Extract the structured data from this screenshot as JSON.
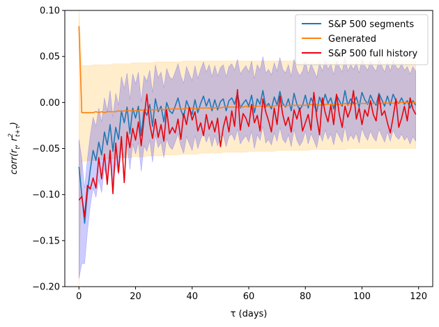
{
  "chart_data": {
    "type": "line",
    "title": "",
    "xlabel": "τ (days)",
    "ylabel_main": "corr(r",
    "ylabel_sub1": "t",
    "ylabel_mid": ", r",
    "ylabel_sup": "2",
    "ylabel_sub2": "t+τ",
    "ylabel_end": ")",
    "xlim": [
      -5,
      125
    ],
    "ylim": [
      -0.2,
      0.1
    ],
    "xticks": [
      0,
      20,
      40,
      60,
      80,
      100,
      120
    ],
    "yticks": [
      -0.2,
      -0.15,
      -0.1,
      -0.05,
      0.0,
      0.05,
      0.1
    ],
    "ytick_labels": [
      "−0.20",
      "−0.15",
      "−0.10",
      "−0.05",
      "0.00",
      "0.05",
      "0.10"
    ],
    "grid": false,
    "legend_position": "top-right",
    "legend": [
      {
        "label": "S&P 500 segments",
        "color": "#1f77b4"
      },
      {
        "label": "Generated",
        "color": "#ff7f0e"
      },
      {
        "label": "S&P 500 full history",
        "color": "#e8000b"
      }
    ],
    "x": [
      0,
      1,
      2,
      3,
      4,
      5,
      6,
      7,
      8,
      9,
      10,
      11,
      12,
      13,
      14,
      15,
      16,
      17,
      18,
      19,
      20,
      21,
      22,
      23,
      24,
      25,
      26,
      27,
      28,
      29,
      30,
      31,
      32,
      33,
      34,
      35,
      36,
      37,
      38,
      39,
      40,
      41,
      42,
      43,
      44,
      45,
      46,
      47,
      48,
      49,
      50,
      51,
      52,
      53,
      54,
      55,
      56,
      57,
      58,
      59,
      60,
      61,
      62,
      63,
      64,
      65,
      66,
      67,
      68,
      69,
      70,
      71,
      72,
      73,
      74,
      75,
      76,
      77,
      78,
      79,
      80,
      81,
      82,
      83,
      84,
      85,
      86,
      87,
      88,
      89,
      90,
      91,
      92,
      93,
      94,
      95,
      96,
      97,
      98,
      99,
      100,
      101,
      102,
      103,
      104,
      105,
      106,
      107,
      108,
      109,
      110,
      111,
      112,
      113,
      114,
      115,
      116,
      117,
      118,
      119
    ],
    "series": [
      {
        "name": "S&P 500 segments",
        "color": "#1f77b4",
        "band_color": "#0000ff",
        "band_opacity": 0.2,
        "values": [
          -0.07,
          -0.1,
          -0.131,
          -0.098,
          -0.073,
          -0.052,
          -0.063,
          -0.043,
          -0.057,
          -0.032,
          -0.046,
          -0.024,
          -0.053,
          -0.027,
          -0.04,
          -0.009,
          -0.022,
          -0.005,
          -0.034,
          -0.006,
          -0.017,
          -0.004,
          -0.036,
          -0.008,
          -0.014,
          -0.002,
          -0.026,
          0.004,
          -0.01,
          -0.004,
          -0.021,
          0.0,
          -0.009,
          -0.012,
          -0.004,
          0.005,
          -0.008,
          -0.016,
          0.002,
          -0.006,
          -0.013,
          0.003,
          -0.011,
          -0.001,
          0.007,
          -0.004,
          0.004,
          -0.009,
          0.003,
          -0.008,
          0.001,
          0.004,
          -0.009,
          0.002,
          0.005,
          -0.002,
          0.01,
          -0.006,
          -0.001,
          0.003,
          -0.004,
          0.008,
          -0.011,
          0.004,
          -0.002,
          0.013,
          -0.005,
          -0.001,
          -0.007,
          0.006,
          -0.003,
          0.012,
          -0.001,
          -0.005,
          0.004,
          -0.009,
          0.01,
          -0.002,
          -0.008,
          -0.003,
          0.008,
          -0.006,
          0.005,
          -0.002,
          -0.01,
          0.006,
          -0.003,
          0.009,
          -0.001,
          0.005,
          -0.007,
          0.008,
          0.002,
          -0.004,
          0.013,
          -0.003,
          0.004,
          -0.001,
          0.006,
          -0.005,
          0.011,
          0.003,
          -0.002,
          0.008,
          0.001,
          -0.003,
          0.01,
          0.003,
          -0.004,
          0.007,
          -0.003,
          0.009,
          0.002,
          -0.001,
          0.005,
          -0.002,
          0.002,
          -0.006,
          0.002,
          -0.003
        ],
        "band_upper": [
          -0.04,
          -0.061,
          -0.093,
          -0.061,
          -0.036,
          -0.016,
          -0.026,
          -0.006,
          -0.021,
          0.005,
          -0.009,
          0.013,
          -0.016,
          0.01,
          -0.003,
          0.028,
          0.015,
          0.032,
          0.003,
          0.031,
          0.02,
          0.033,
          0.001,
          0.029,
          0.023,
          0.035,
          0.011,
          0.041,
          0.027,
          0.033,
          0.016,
          0.037,
          0.028,
          0.025,
          0.033,
          0.042,
          0.029,
          0.021,
          0.039,
          0.031,
          0.024,
          0.04,
          0.026,
          0.036,
          0.044,
          0.033,
          0.041,
          0.028,
          0.04,
          0.029,
          0.038,
          0.041,
          0.028,
          0.039,
          0.042,
          0.035,
          0.047,
          0.031,
          0.036,
          0.04,
          0.033,
          0.045,
          0.026,
          0.041,
          0.035,
          0.05,
          0.032,
          0.036,
          0.03,
          0.043,
          0.034,
          0.049,
          0.036,
          0.032,
          0.041,
          0.028,
          0.047,
          0.035,
          0.029,
          0.034,
          0.045,
          0.031,
          0.042,
          0.035,
          0.027,
          0.043,
          0.034,
          0.046,
          0.036,
          0.042,
          0.03,
          0.045,
          0.039,
          0.033,
          0.05,
          0.034,
          0.041,
          0.036,
          0.043,
          0.032,
          0.048,
          0.04,
          0.035,
          0.045,
          0.038,
          0.034,
          0.047,
          0.04,
          0.033,
          0.044,
          0.034,
          0.046,
          0.039,
          0.036,
          0.042,
          0.035,
          0.039,
          0.031,
          0.039,
          0.034
        ],
        "band_lower": [
          -0.191,
          -0.175,
          -0.175,
          -0.14,
          -0.112,
          -0.093,
          -0.103,
          -0.084,
          -0.098,
          -0.071,
          -0.085,
          -0.063,
          -0.092,
          -0.066,
          -0.079,
          -0.049,
          -0.061,
          -0.044,
          -0.073,
          -0.045,
          -0.056,
          -0.043,
          -0.075,
          -0.047,
          -0.053,
          -0.041,
          -0.065,
          -0.035,
          -0.049,
          -0.043,
          -0.06,
          -0.039,
          -0.048,
          -0.051,
          -0.043,
          -0.034,
          -0.047,
          -0.055,
          -0.037,
          -0.045,
          -0.052,
          -0.036,
          -0.05,
          -0.04,
          -0.032,
          -0.043,
          -0.035,
          -0.048,
          -0.036,
          -0.047,
          -0.038,
          -0.035,
          -0.048,
          -0.037,
          -0.034,
          -0.041,
          -0.029,
          -0.045,
          -0.04,
          -0.036,
          -0.043,
          -0.031,
          -0.05,
          -0.035,
          -0.041,
          -0.026,
          -0.044,
          -0.04,
          -0.046,
          -0.033,
          -0.042,
          -0.027,
          -0.04,
          -0.044,
          -0.035,
          -0.048,
          -0.029,
          -0.041,
          -0.047,
          -0.042,
          -0.031,
          -0.045,
          -0.034,
          -0.041,
          -0.049,
          -0.033,
          -0.042,
          -0.03,
          -0.04,
          -0.034,
          -0.046,
          -0.031,
          -0.037,
          -0.043,
          -0.026,
          -0.042,
          -0.035,
          -0.04,
          -0.033,
          -0.044,
          -0.028,
          -0.036,
          -0.041,
          -0.031,
          -0.038,
          -0.042,
          -0.029,
          -0.036,
          -0.043,
          -0.032,
          -0.042,
          -0.03,
          -0.037,
          -0.04,
          -0.034,
          -0.041,
          -0.037,
          -0.045,
          -0.037,
          -0.042
        ]
      },
      {
        "name": "Generated",
        "color": "#ff7f0e",
        "band_color": "#ffa500",
        "band_opacity": 0.2,
        "values": [
          0.083,
          -0.011,
          -0.011,
          -0.011,
          -0.011,
          -0.011,
          -0.01,
          -0.011,
          -0.01,
          -0.011,
          -0.01,
          -0.01,
          -0.01,
          -0.01,
          -0.009,
          -0.01,
          -0.009,
          -0.009,
          -0.009,
          -0.009,
          -0.009,
          -0.009,
          -0.008,
          -0.009,
          -0.008,
          -0.008,
          -0.008,
          -0.008,
          -0.008,
          -0.007,
          -0.008,
          -0.007,
          -0.007,
          -0.007,
          -0.007,
          -0.007,
          -0.007,
          -0.007,
          -0.006,
          -0.007,
          -0.006,
          -0.007,
          -0.006,
          -0.006,
          -0.006,
          -0.006,
          -0.006,
          -0.006,
          -0.006,
          -0.005,
          -0.006,
          -0.005,
          -0.005,
          -0.005,
          -0.005,
          -0.005,
          -0.005,
          -0.005,
          -0.005,
          -0.004,
          -0.005,
          -0.004,
          -0.005,
          -0.004,
          -0.004,
          -0.004,
          -0.004,
          -0.004,
          -0.004,
          -0.004,
          -0.003,
          -0.004,
          -0.003,
          -0.004,
          -0.003,
          -0.003,
          -0.003,
          -0.003,
          -0.003,
          -0.003,
          -0.003,
          -0.003,
          -0.002,
          -0.003,
          -0.002,
          -0.003,
          -0.002,
          -0.002,
          -0.002,
          -0.002,
          -0.002,
          -0.002,
          -0.002,
          -0.002,
          -0.001,
          -0.002,
          -0.001,
          -0.002,
          -0.001,
          -0.001,
          -0.001,
          -0.001,
          -0.001,
          -0.001,
          -0.001,
          -0.001,
          -0.001,
          -0.001,
          0.0,
          -0.001,
          0.0,
          -0.001,
          0.0,
          0.0,
          0.0,
          0.0,
          0.0,
          0.0,
          0.0,
          0.0
        ],
        "band_upper": [
          0.1,
          0.04,
          0.04,
          0.04,
          0.04,
          0.041,
          0.041,
          0.041,
          0.041,
          0.041,
          0.041,
          0.041,
          0.042,
          0.042,
          0.042,
          0.042,
          0.042,
          0.042,
          0.042,
          0.043,
          0.043,
          0.043,
          0.043,
          0.043,
          0.043,
          0.043,
          0.043,
          0.044,
          0.044,
          0.044,
          0.044,
          0.044,
          0.044,
          0.044,
          0.044,
          0.044,
          0.044,
          0.045,
          0.045,
          0.045,
          0.045,
          0.045,
          0.045,
          0.045,
          0.045,
          0.045,
          0.045,
          0.045,
          0.045,
          0.045,
          0.045,
          0.045,
          0.045,
          0.045,
          0.045,
          0.045,
          0.045,
          0.045,
          0.045,
          0.045,
          0.045,
          0.045,
          0.045,
          0.045,
          0.045,
          0.045,
          0.045,
          0.045,
          0.045,
          0.045,
          0.045,
          0.045,
          0.045,
          0.045,
          0.045,
          0.045,
          0.045,
          0.045,
          0.045,
          0.045,
          0.045,
          0.045,
          0.045,
          0.045,
          0.045,
          0.045,
          0.045,
          0.045,
          0.045,
          0.045,
          0.045,
          0.045,
          0.045,
          0.045,
          0.045,
          0.045,
          0.045,
          0.045,
          0.045,
          0.045,
          0.045,
          0.045,
          0.045,
          0.045,
          0.045,
          0.045,
          0.045,
          0.045,
          0.045,
          0.045,
          0.045,
          0.045,
          0.045,
          0.045,
          0.045,
          0.045,
          0.045,
          0.045,
          0.045,
          0.045
        ],
        "band_lower": [
          -0.2,
          -0.064,
          -0.064,
          -0.063,
          -0.063,
          -0.063,
          -0.063,
          -0.062,
          -0.062,
          -0.062,
          -0.061,
          -0.061,
          -0.061,
          -0.061,
          -0.06,
          -0.06,
          -0.06,
          -0.06,
          -0.06,
          -0.059,
          -0.059,
          -0.059,
          -0.059,
          -0.059,
          -0.058,
          -0.058,
          -0.058,
          -0.058,
          -0.058,
          -0.058,
          -0.057,
          -0.057,
          -0.057,
          -0.057,
          -0.057,
          -0.057,
          -0.056,
          -0.056,
          -0.056,
          -0.056,
          -0.056,
          -0.056,
          -0.056,
          -0.055,
          -0.055,
          -0.055,
          -0.055,
          -0.055,
          -0.055,
          -0.055,
          -0.055,
          -0.054,
          -0.054,
          -0.054,
          -0.054,
          -0.054,
          -0.054,
          -0.054,
          -0.054,
          -0.054,
          -0.053,
          -0.053,
          -0.053,
          -0.053,
          -0.053,
          -0.053,
          -0.053,
          -0.053,
          -0.053,
          -0.053,
          -0.052,
          -0.052,
          -0.052,
          -0.052,
          -0.052,
          -0.052,
          -0.052,
          -0.052,
          -0.052,
          -0.052,
          -0.052,
          -0.052,
          -0.051,
          -0.051,
          -0.051,
          -0.051,
          -0.051,
          -0.051,
          -0.051,
          -0.051,
          -0.051,
          -0.051,
          -0.051,
          -0.051,
          -0.051,
          -0.05,
          -0.05,
          -0.05,
          -0.05,
          -0.05,
          -0.05,
          -0.05,
          -0.05,
          -0.05,
          -0.05,
          -0.05,
          -0.05,
          -0.05,
          -0.05,
          -0.05,
          -0.05,
          -0.05,
          -0.05,
          -0.05,
          -0.05,
          -0.05,
          -0.05,
          -0.05,
          -0.05,
          -0.05
        ]
      },
      {
        "name": "S&P 500 full history",
        "color": "#e8000b",
        "values": [
          -0.106,
          -0.102,
          -0.124,
          -0.09,
          -0.094,
          -0.082,
          -0.093,
          -0.06,
          -0.083,
          -0.056,
          -0.089,
          -0.052,
          -0.099,
          -0.044,
          -0.076,
          -0.037,
          -0.087,
          -0.032,
          -0.049,
          -0.028,
          -0.041,
          -0.021,
          -0.047,
          -0.017,
          0.009,
          -0.023,
          -0.039,
          -0.018,
          -0.038,
          -0.024,
          -0.042,
          -0.008,
          -0.034,
          -0.027,
          -0.033,
          -0.018,
          -0.04,
          -0.012,
          -0.024,
          -0.005,
          -0.019,
          -0.01,
          -0.031,
          -0.022,
          -0.036,
          -0.013,
          -0.029,
          -0.02,
          -0.032,
          -0.017,
          -0.048,
          -0.027,
          -0.015,
          -0.032,
          -0.009,
          -0.026,
          0.014,
          -0.03,
          -0.012,
          -0.017,
          -0.026,
          -0.002,
          -0.022,
          -0.014,
          -0.031,
          0.004,
          -0.01,
          -0.02,
          -0.032,
          -0.006,
          -0.024,
          0.007,
          -0.013,
          -0.025,
          -0.016,
          -0.032,
          -0.008,
          -0.018,
          -0.006,
          -0.031,
          -0.022,
          -0.013,
          -0.03,
          0.011,
          -0.016,
          -0.035,
          0.005,
          -0.011,
          -0.021,
          -0.003,
          -0.024,
          0.009,
          -0.013,
          -0.027,
          -0.004,
          -0.016,
          -0.007,
          0.013,
          -0.018,
          -0.006,
          -0.024,
          -0.008,
          -0.015,
          0.002,
          -0.013,
          -0.02,
          0.008,
          -0.014,
          -0.009,
          -0.022,
          -0.033,
          -0.016,
          0.004,
          -0.027,
          -0.017,
          -0.004,
          -0.02,
          0.005,
          -0.007,
          -0.013
        ]
      }
    ]
  }
}
